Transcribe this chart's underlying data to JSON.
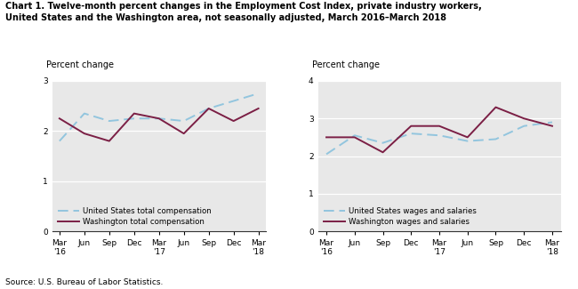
{
  "title_line1": "Chart 1. Twelve-month percent changes in the Employment Cost Index, private industry workers,",
  "title_line2": "United States and the Washington area, not seasonally adjusted, March 2016–March 2018",
  "source": "Source: U.S. Bureau of Labor Statistics.",
  "x_labels": [
    "Mar\n'16",
    "Jun",
    "Sep",
    "Dec",
    "Mar\n'17",
    "Jun",
    "Sep",
    "Dec",
    "Mar\n'18"
  ],
  "left": {
    "ylabel": "Percent change",
    "ylim": [
      0.0,
      3.0
    ],
    "yticks": [
      0.0,
      1.0,
      2.0,
      3.0
    ],
    "us_total_comp": [
      1.8,
      2.35,
      2.2,
      2.25,
      2.25,
      2.2,
      2.45,
      2.6,
      2.75
    ],
    "wa_total_comp": [
      2.25,
      1.95,
      1.8,
      2.35,
      2.25,
      1.95,
      2.45,
      2.2,
      2.45
    ],
    "us_label": "United States total compensation",
    "wa_label": "Washington total compensation"
  },
  "right": {
    "ylabel": "Percent change",
    "ylim": [
      0.0,
      4.0
    ],
    "yticks": [
      0.0,
      1.0,
      2.0,
      3.0,
      4.0
    ],
    "us_wages": [
      2.05,
      2.55,
      2.35,
      2.6,
      2.55,
      2.4,
      2.45,
      2.8,
      2.9
    ],
    "wa_wages": [
      2.5,
      2.5,
      2.1,
      2.8,
      2.8,
      2.5,
      3.3,
      3.0,
      2.8
    ],
    "us_label": "United States wages and salaries",
    "wa_label": "Washington wages and salaries"
  },
  "us_color": "#92C5DE",
  "wa_color": "#7B1F45",
  "bg_color": "#E8E8E8"
}
